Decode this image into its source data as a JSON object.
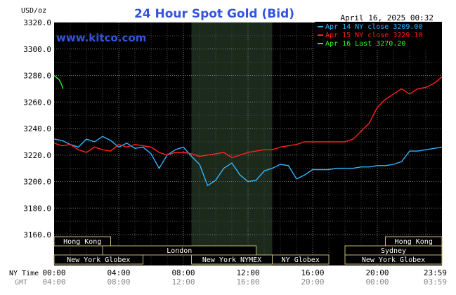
{
  "chart_data": {
    "type": "line",
    "title": "24 Hour Spot Gold (Bid)",
    "brand": "www.kitco.com",
    "timestamp": "April 16, 2025 00:32",
    "ylabel": "USD/oz",
    "ylim": [
      3160,
      3320
    ],
    "y_ticks": [
      "3320.0",
      "3300.0",
      "3280.0",
      "3260.0",
      "3240.0",
      "3220.0",
      "3200.0",
      "3180.0",
      "3160.0"
    ],
    "x_row_label": "NY Time",
    "gmt_row_label": "GMT",
    "x_ticks_ny": [
      "00:00",
      "04:00",
      "08:00",
      "12:00",
      "16:00",
      "20:00",
      "23:59"
    ],
    "x_ticks_gmt": [
      "04:00",
      "08:00",
      "12:00",
      "16:00",
      "20:00",
      "00:00",
      "03:59"
    ],
    "grid": true,
    "legend_position": "top-right",
    "legend": [
      {
        "label": "Apr 14 NY close 3209.00",
        "color": "#33b5ff"
      },
      {
        "label": "Apr 15 NY close 3229.10",
        "color": "#ff2222"
      },
      {
        "label": "Apr 16 Last 3270.20",
        "color": "#22ff22"
      }
    ],
    "sessions": [
      {
        "name": "Hong Kong",
        "row": 0,
        "start": 0.0,
        "end": 3.5
      },
      {
        "name": "Hong Kong",
        "row": 0,
        "start": 20.5,
        "end": 24.0
      },
      {
        "name": "London",
        "row": 1,
        "start": 3.0,
        "end": 12.5
      },
      {
        "name": "Sydney",
        "row": 1,
        "start": 18.0,
        "end": 24.0
      },
      {
        "name": "New York Globex",
        "row": 2,
        "start": 0.0,
        "end": 5.5
      },
      {
        "name": "New York NYMEX",
        "row": 2,
        "start": 8.5,
        "end": 13.5
      },
      {
        "name": "NY Globex",
        "row": 2,
        "start": 13.5,
        "end": 17.0
      },
      {
        "name": "New York Globex",
        "row": 2,
        "start": 18.0,
        "end": 24.0
      }
    ],
    "highlight_band": [
      8.5,
      13.5
    ],
    "series": [
      {
        "name": "Apr 14 NY close 3209.00",
        "color": "#33b5ff",
        "x": [
          0,
          0.5,
          1,
          1.5,
          2,
          2.5,
          3,
          3.5,
          4,
          4.5,
          5,
          5.5,
          6,
          6.5,
          7,
          7.5,
          8,
          8.5,
          9,
          9.5,
          10,
          10.5,
          11,
          11.5,
          12,
          12.5,
          13,
          13.5,
          14,
          14.5,
          15,
          15.5,
          16,
          16.5,
          17,
          17.5,
          18,
          18.5,
          19,
          19.5,
          20,
          20.5,
          21,
          21.5,
          22,
          22.5,
          23,
          23.5,
          24
        ],
        "y": [
          3232,
          3231,
          3228,
          3226,
          3232,
          3230,
          3234,
          3231,
          3226,
          3229,
          3225,
          3226,
          3221,
          3210,
          3220,
          3224,
          3226,
          3219,
          3213,
          3197,
          3201,
          3210,
          3214,
          3205,
          3200,
          3201,
          3208,
          3210,
          3213,
          3212,
          3202,
          3205,
          3209,
          3209,
          3209,
          3210,
          3210,
          3210,
          3211,
          3211,
          3212,
          3212,
          3213,
          3215,
          3223,
          3223,
          3224,
          3225,
          3226
        ]
      },
      {
        "name": "Apr 15 NY close 3229.10",
        "color": "#ff2222",
        "x": [
          0,
          0.5,
          1,
          1.5,
          2,
          2.5,
          3,
          3.5,
          4,
          4.5,
          5,
          5.5,
          6,
          6.5,
          7,
          7.5,
          8,
          8.5,
          9,
          9.5,
          10,
          10.5,
          11,
          11.5,
          12,
          12.5,
          13,
          13.5,
          14,
          14.5,
          15,
          15.5,
          16,
          16.5,
          17,
          17.5,
          18,
          18.5,
          19,
          19.5,
          20,
          20.5,
          21,
          21.5,
          22,
          22.5,
          23,
          23.5,
          24
        ],
        "y": [
          3229,
          3227,
          3228,
          3224,
          3222,
          3226,
          3224,
          3223,
          3228,
          3226,
          3228,
          3227,
          3226,
          3222,
          3220,
          3222,
          3222,
          3221,
          3219,
          3220,
          3221,
          3222,
          3218,
          3220,
          3222,
          3223,
          3224,
          3224,
          3226,
          3227,
          3228,
          3230,
          3230,
          3230,
          3230,
          3230,
          3230,
          3232,
          3238,
          3244,
          3256,
          3262,
          3266,
          3270,
          3266,
          3270,
          3271,
          3274,
          3279
        ]
      },
      {
        "name": "Apr 16 Last 3270.20",
        "color": "#22ff22",
        "x": [
          0,
          0.1,
          0.2,
          0.3,
          0.4,
          0.5,
          0.55
        ],
        "y": [
          3280,
          3279,
          3278,
          3277,
          3275,
          3272,
          3270
        ]
      }
    ]
  }
}
